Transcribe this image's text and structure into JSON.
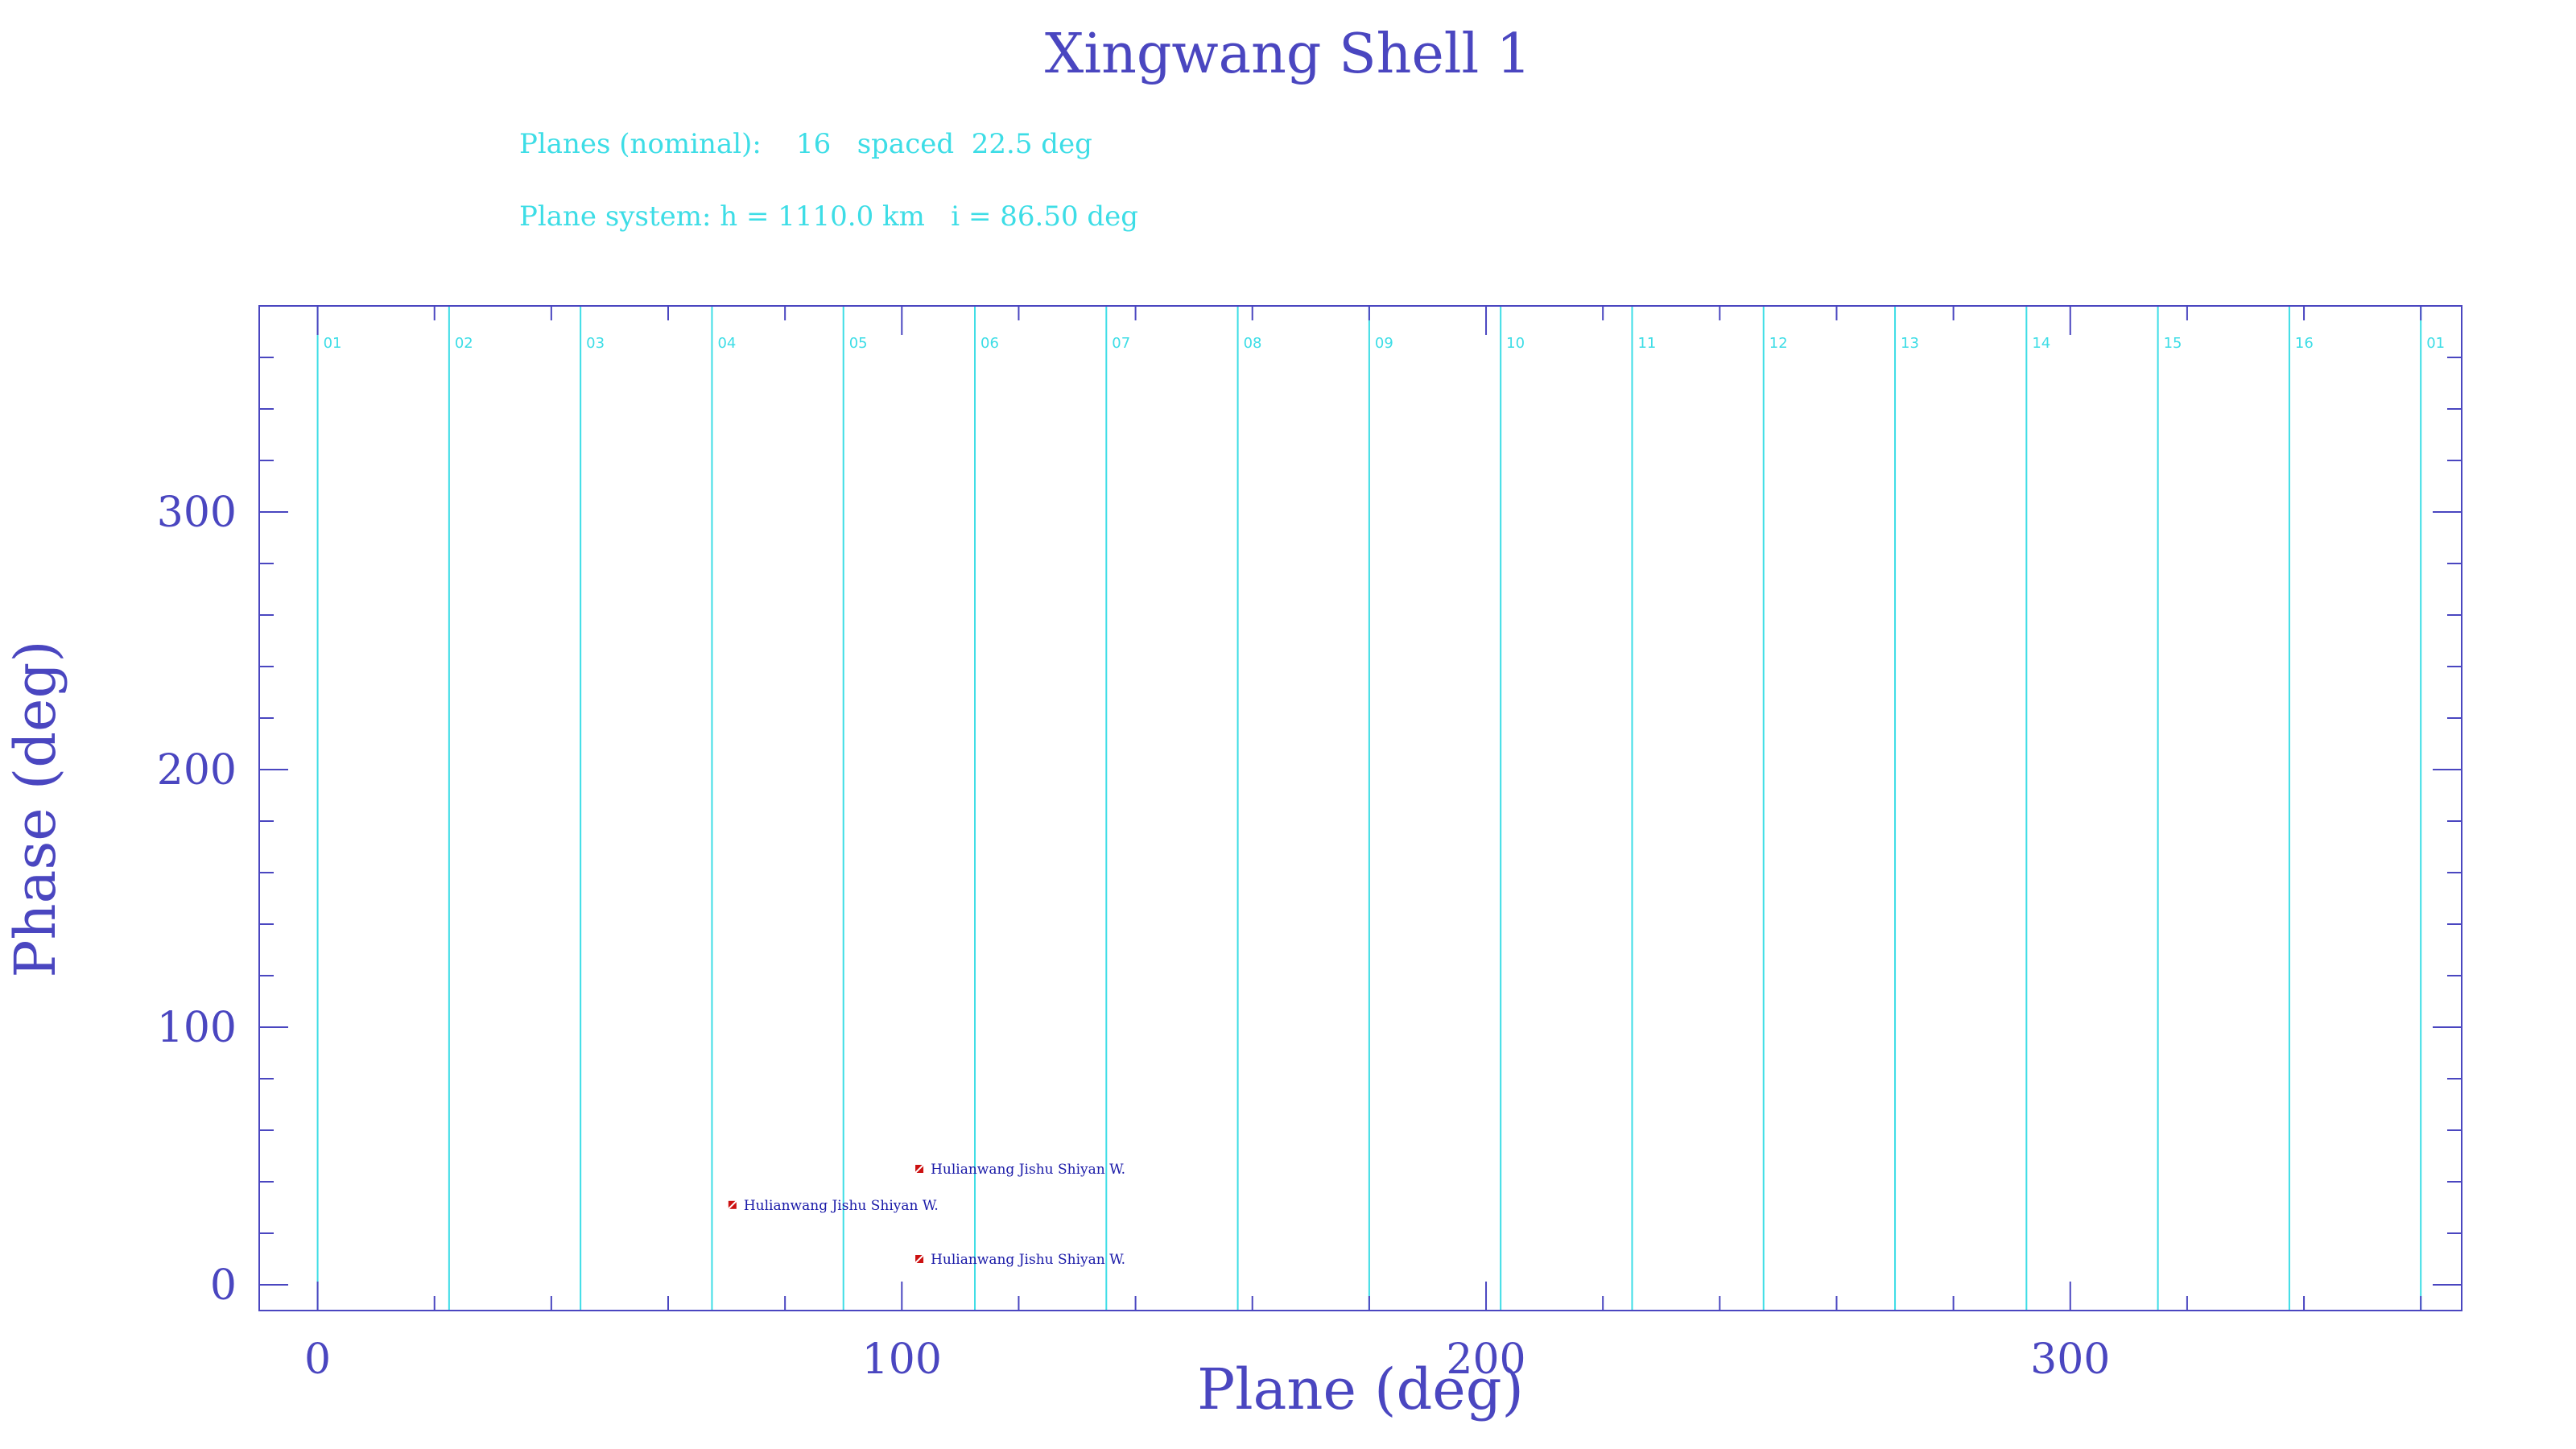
{
  "colors": {
    "axis": "#4a46c0",
    "plane_line": "#3ddde6",
    "sat_marker": "#cc1111",
    "sat_label": "#1a1aa8"
  },
  "info": {
    "line1": "Planes (nominal):    16   spaced  22.5 deg",
    "line2": "Plane system: h = 1110.0 km   i = 86.50 deg"
  },
  "chart_data": {
    "type": "scatter",
    "title": "Xingwang Shell 1",
    "xlabel": "Plane (deg)",
    "ylabel": "Phase (deg)",
    "xlim": [
      -10,
      367
    ],
    "ylim": [
      -10,
      380
    ],
    "x_ticks": [
      0,
      100,
      200,
      300
    ],
    "y_ticks": [
      0,
      100,
      200,
      300
    ],
    "grid": false,
    "planes": [
      {
        "x": 0,
        "label": "01"
      },
      {
        "x": 22.5,
        "label": "02"
      },
      {
        "x": 45,
        "label": "03"
      },
      {
        "x": 67.5,
        "label": "04"
      },
      {
        "x": 90,
        "label": "05"
      },
      {
        "x": 112.5,
        "label": "06"
      },
      {
        "x": 135,
        "label": "07"
      },
      {
        "x": 157.5,
        "label": "08"
      },
      {
        "x": 180,
        "label": "09"
      },
      {
        "x": 202.5,
        "label": "10"
      },
      {
        "x": 225,
        "label": "11"
      },
      {
        "x": 247.5,
        "label": "12"
      },
      {
        "x": 270,
        "label": "13"
      },
      {
        "x": 292.5,
        "label": "14"
      },
      {
        "x": 315,
        "label": "15"
      },
      {
        "x": 337.5,
        "label": "16"
      },
      {
        "x": 360,
        "label": "01"
      }
    ],
    "series": [
      {
        "points": [
          {
            "x": 71,
            "y": 31,
            "label": "Hulianwang Jishu Shiyan W."
          },
          {
            "x": 103,
            "y": 45,
            "label": "Hulianwang Jishu Shiyan W."
          },
          {
            "x": 103,
            "y": 10,
            "label": "Hulianwang Jishu Shiyan W."
          }
        ]
      }
    ]
  }
}
